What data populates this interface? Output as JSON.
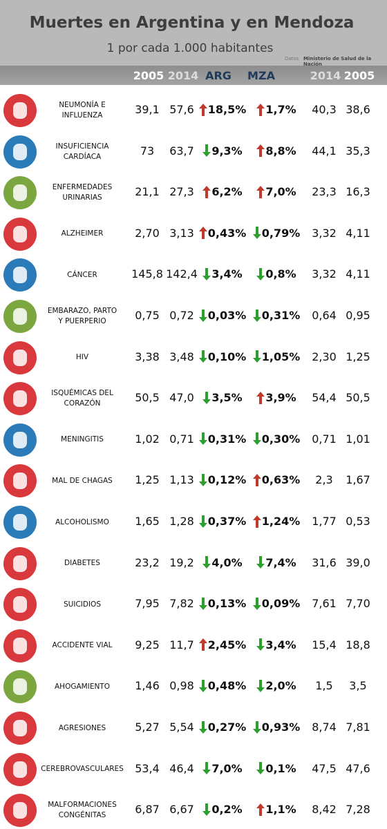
{
  "header": {
    "title": "Muertes en Argentina y en Mendoza",
    "subtitle": "1 por cada 1.000 habitantes",
    "source_label": "Datos",
    "source": "Ministerio de Salud de la Nación"
  },
  "table": {
    "columns": [
      "2005",
      "2014",
      "ARG",
      "MZA",
      "2014",
      "2005"
    ],
    "rows": [
      {
        "label": [
          "NEUMONÍA E",
          "INFLUENZA"
        ],
        "arg_2005": "39,1",
        "arg_2014": "57,6",
        "arg_change": "18,5%",
        "arg_dir": "up",
        "mza_change": "1,7%",
        "mza_dir": "up",
        "mza_2014": "40,3",
        "mza_2005": "38,6"
      },
      {
        "label": [
          "INSUFICIENCIA",
          "CARDÍACA"
        ],
        "arg_2005": "73",
        "arg_2014": "63,7",
        "arg_change": "9,3%",
        "arg_dir": "down",
        "mza_change": "8,8%",
        "mza_dir": "up",
        "mza_2014": "44,1",
        "mza_2005": "35,3"
      },
      {
        "label": [
          "ENFERMEDADES",
          "URINARIAS"
        ],
        "arg_2005": "21,1",
        "arg_2014": "27,3",
        "arg_change": "6,2%",
        "arg_dir": "up",
        "mza_change": "7,0%",
        "mza_dir": "up",
        "mza_2014": "23,3",
        "mza_2005": "16,3"
      },
      {
        "label": [
          "ALZHEIMER"
        ],
        "arg_2005": "2,70",
        "arg_2014": "3,13",
        "arg_change": "0,43%",
        "arg_dir": "up",
        "mza_change": "0,79%",
        "mza_dir": "down",
        "mza_2014": "3,32",
        "mza_2005": "4,11"
      },
      {
        "label": [
          "CÁNCER"
        ],
        "arg_2005": "145,8",
        "arg_2014": "142,4",
        "arg_change": "3,4%",
        "arg_dir": "down",
        "mza_change": "0,8%",
        "mza_dir": "down",
        "mza_2014": "3,32",
        "mza_2005": "4,11"
      },
      {
        "label": [
          "EMBARAZO, PARTO",
          "Y PUERPERIO"
        ],
        "arg_2005": "0,75",
        "arg_2014": "0,72",
        "arg_change": "0,03%",
        "arg_dir": "down",
        "mza_change": "0,31%",
        "mza_dir": "down",
        "mza_2014": "0,64",
        "mza_2005": "0,95"
      },
      {
        "label": [
          "HIV"
        ],
        "arg_2005": "3,38",
        "arg_2014": "3,48",
        "arg_change": "0,10%",
        "arg_dir": "down",
        "mza_change": "1,05%",
        "mza_dir": "down",
        "mza_2014": "2,30",
        "mza_2005": "1,25"
      },
      {
        "label": [
          "ISQUÉMICAS DEL",
          "CORAZÓN"
        ],
        "arg_2005": "50,5",
        "arg_2014": "47,0",
        "arg_change": "3,5%",
        "arg_dir": "down",
        "mza_change": "3,9%",
        "mza_dir": "up",
        "mza_2014": "54,4",
        "mza_2005": "50,5"
      },
      {
        "label": [
          "MENINGITIS"
        ],
        "arg_2005": "1,02",
        "arg_2014": "0,71",
        "arg_change": "0,31%",
        "arg_dir": "down",
        "mza_change": "0,30%",
        "mza_dir": "down",
        "mza_2014": "0,71",
        "mza_2005": "1,01"
      },
      {
        "label": [
          "MAL DE CHAGAS"
        ],
        "arg_2005": "1,25",
        "arg_2014": "1,13",
        "arg_change": "0,12%",
        "arg_dir": "down",
        "mza_change": "0,63%",
        "mza_dir": "up",
        "mza_2014": "2,3",
        "mza_2005": "1,67"
      },
      {
        "label": [
          "ALCOHOLISMO"
        ],
        "arg_2005": "1,65",
        "arg_2014": "1,28",
        "arg_change": "0,37%",
        "arg_dir": "down",
        "mza_change": "1,24%",
        "mza_dir": "up",
        "mza_2014": "1,77",
        "mza_2005": "0,53"
      },
      {
        "label": [
          "DIABETES"
        ],
        "arg_2005": "23,2",
        "arg_2014": "19,2",
        "arg_change": "4,0%",
        "arg_dir": "down",
        "mza_change": "7,4%",
        "mza_dir": "down",
        "mza_2014": "31,6",
        "mza_2005": "39,0"
      },
      {
        "label": [
          "SUICIDIOS"
        ],
        "arg_2005": "7,95",
        "arg_2014": "7,82",
        "arg_change": "0,13%",
        "arg_dir": "down",
        "mza_change": "0,09%",
        "mza_dir": "down",
        "mza_2014": "7,61",
        "mza_2005": "7,70"
      },
      {
        "label": [
          "ACCIDENTE VIAL"
        ],
        "arg_2005": "9,25",
        "arg_2014": "11,7",
        "arg_change": "2,45%",
        "arg_dir": "up",
        "mza_change": "3,4%",
        "mza_dir": "down",
        "mza_2014": "15,4",
        "mza_2005": "18,8"
      },
      {
        "label": [
          "AHOGAMIENTO"
        ],
        "arg_2005": "1,46",
        "arg_2014": "0,98",
        "arg_change": "0,48%",
        "arg_dir": "down",
        "mza_change": "2,0%",
        "mza_dir": "down",
        "mza_2014": "1,5",
        "mza_2005": "3,5"
      },
      {
        "label": [
          "AGRESIONES"
        ],
        "arg_2005": "5,27",
        "arg_2014": "5,54",
        "arg_change": "0,27%",
        "arg_dir": "down",
        "mza_change": "0,93%",
        "mza_dir": "down",
        "mza_2014": "8,74",
        "mza_2005": "7,81"
      },
      {
        "label": [
          "CEREBROVASCULARES"
        ],
        "arg_2005": "53,4",
        "arg_2014": "46,4",
        "arg_change": "7,0%",
        "arg_dir": "down",
        "mza_change": "0,1%",
        "mza_dir": "down",
        "mza_2014": "47,5",
        "mza_2005": "47,6"
      },
      {
        "label": [
          "MALFORMACIONES",
          "CONGÉNITAS"
        ],
        "arg_2005": "6,87",
        "arg_2014": "6,67",
        "arg_change": "0,2%",
        "arg_dir": "down",
        "mza_change": "1,1%",
        "mza_dir": "up",
        "mza_2014": "8,42",
        "mza_2005": "7,28"
      }
    ]
  }
}
